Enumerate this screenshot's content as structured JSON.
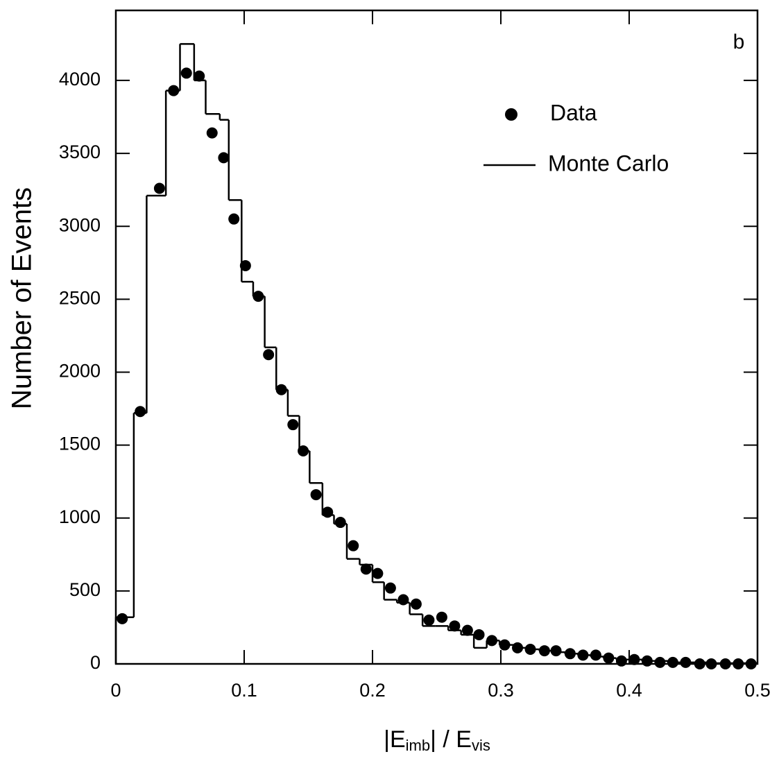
{
  "chart_data": {
    "type": "histogram",
    "annotation": "b",
    "ylabel": "Number of Events",
    "xlabel_parts": [
      "|E",
      "imb",
      "| / E",
      "vis"
    ],
    "xlim": [
      0,
      0.5
    ],
    "ylim": [
      0,
      4480
    ],
    "xticks": [
      0,
      0.1,
      0.2,
      0.3,
      0.4,
      0.5
    ],
    "yticks": [
      0,
      500,
      1000,
      1500,
      2000,
      2500,
      3000,
      3500,
      4000
    ],
    "legend": "upper right",
    "series": [
      {
        "name": "Data",
        "type": "scatter",
        "color": "#000000",
        "x": [
          0.005,
          0.019,
          0.034,
          0.045,
          0.055,
          0.065,
          0.075,
          0.084,
          0.092,
          0.101,
          0.111,
          0.119,
          0.129,
          0.138,
          0.146,
          0.156,
          0.165,
          0.175,
          0.185,
          0.195,
          0.204,
          0.214,
          0.224,
          0.234,
          0.244,
          0.254,
          0.264,
          0.274,
          0.283,
          0.293,
          0.303,
          0.313,
          0.323,
          0.334,
          0.343,
          0.354,
          0.364,
          0.374,
          0.384,
          0.394,
          0.404,
          0.414,
          0.424,
          0.434,
          0.444,
          0.455,
          0.464,
          0.475,
          0.485,
          0.495
        ],
        "values": [
          310,
          1730,
          3260,
          3930,
          4050,
          4030,
          3640,
          3470,
          3050,
          2730,
          2520,
          2120,
          1880,
          1640,
          1460,
          1160,
          1040,
          970,
          810,
          650,
          620,
          520,
          440,
          410,
          300,
          320,
          260,
          230,
          200,
          160,
          130,
          110,
          100,
          90,
          90,
          70,
          60,
          60,
          40,
          20,
          30,
          20,
          10,
          10,
          10,
          0,
          0,
          0,
          0,
          0
        ]
      },
      {
        "name": "Monte Carlo",
        "type": "step",
        "color": "#000000",
        "bins": [
          0,
          0.014,
          0.024,
          0.039,
          0.05,
          0.061,
          0.07,
          0.081,
          0.088,
          0.098,
          0.107,
          0.116,
          0.125,
          0.134,
          0.143,
          0.151,
          0.161,
          0.17,
          0.18,
          0.19,
          0.2,
          0.209,
          0.219,
          0.229,
          0.239,
          0.249,
          0.259,
          0.269,
          0.279,
          0.289,
          0.299,
          0.31,
          0.32,
          0.33,
          0.34,
          0.35,
          0.36,
          0.37,
          0.38,
          0.39,
          0.4,
          0.41,
          0.42,
          0.43,
          0.44,
          0.45,
          0.46,
          0.47,
          0.48,
          0.49,
          0.5
        ],
        "values": [
          320,
          1720,
          3210,
          3930,
          4250,
          4000,
          3770,
          3730,
          3180,
          2620,
          2520,
          2170,
          1880,
          1700,
          1460,
          1240,
          1020,
          960,
          720,
          680,
          560,
          440,
          420,
          340,
          260,
          260,
          230,
          200,
          110,
          160,
          130,
          110,
          100,
          90,
          80,
          70,
          60,
          50,
          40,
          30,
          30,
          20,
          20,
          10,
          10,
          10,
          5,
          5,
          5,
          5
        ]
      }
    ]
  }
}
